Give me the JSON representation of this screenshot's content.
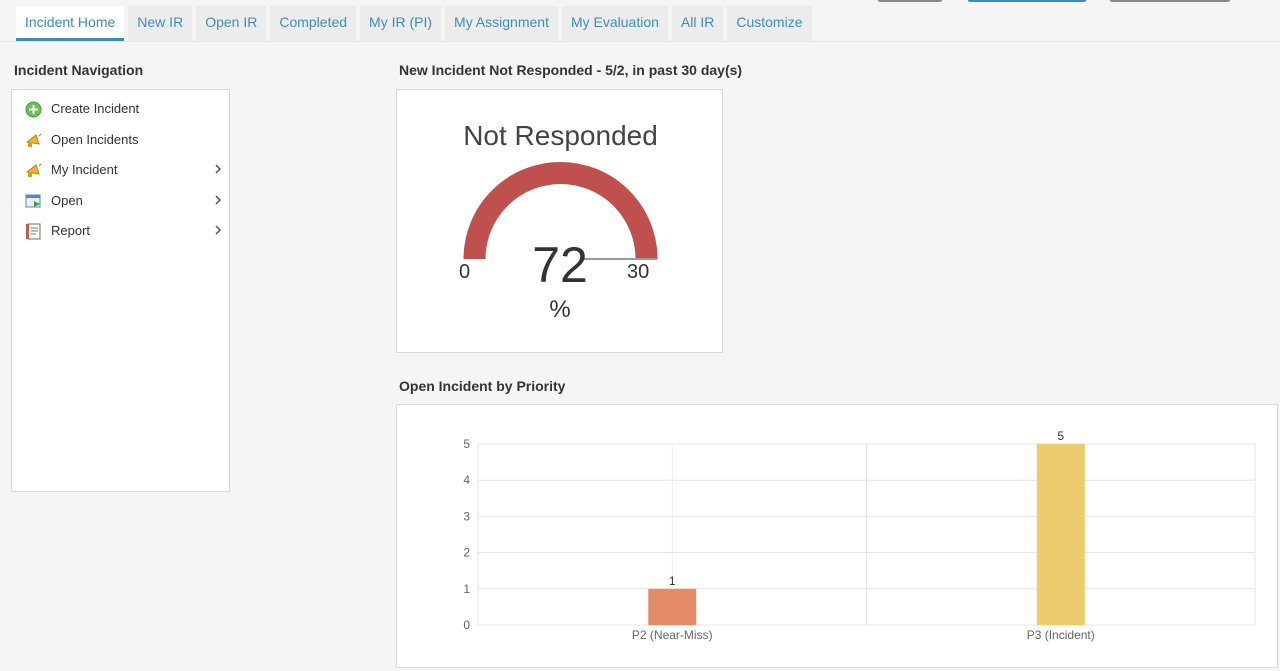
{
  "tabs": [
    {
      "label": "Incident Home",
      "active": true
    },
    {
      "label": "New IR",
      "active": false
    },
    {
      "label": "Open IR",
      "active": false
    },
    {
      "label": "Completed",
      "active": false
    },
    {
      "label": "My IR (PI)",
      "active": false
    },
    {
      "label": "My Assignment",
      "active": false
    },
    {
      "label": "My Evaluation",
      "active": false
    },
    {
      "label": "All IR",
      "active": false
    },
    {
      "label": "Customize",
      "active": false
    }
  ],
  "sidebar": {
    "title": "Incident Navigation",
    "items": [
      {
        "label": "Create Incident",
        "icon": "add-circle-icon",
        "has_submenu": false
      },
      {
        "label": "Open Incidents",
        "icon": "megaphone-icon",
        "has_submenu": false
      },
      {
        "label": "My Incident",
        "icon": "megaphone-icon",
        "has_submenu": true
      },
      {
        "label": "Open",
        "icon": "window-arrow-icon",
        "has_submenu": true
      },
      {
        "label": "Report",
        "icon": "report-book-icon",
        "has_submenu": true
      }
    ]
  },
  "gauge": {
    "section_title": "New Incident Not Responded - 5/2, in past 30 day(s)",
    "title": "Not Responded",
    "value": "72",
    "unit": "%",
    "min": "0",
    "max": "30",
    "color": "#c0504d"
  },
  "priority_chart": {
    "section_title": "Open Incident by Priority"
  },
  "chart_data": {
    "type": "bar",
    "title": "",
    "xlabel": "",
    "ylabel": "",
    "categories": [
      "P2 (Near-Miss)",
      "P3 (Incident)"
    ],
    "values": [
      1,
      5
    ],
    "colors": [
      "#e38b68",
      "#ebcb6e"
    ],
    "ylim": [
      0,
      5
    ],
    "yticks": [
      0,
      1,
      2,
      3,
      4,
      5
    ],
    "data_labels": true,
    "grid": true
  }
}
